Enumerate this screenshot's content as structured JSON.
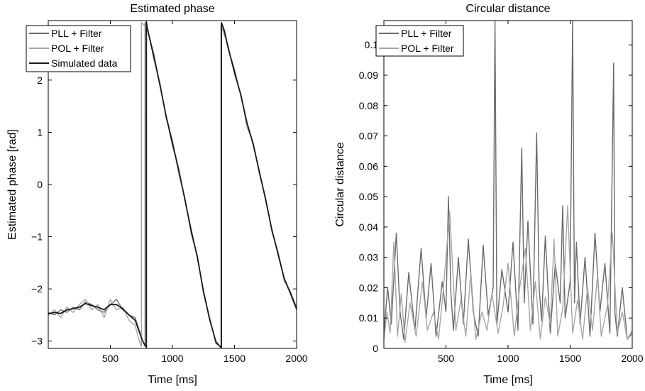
{
  "colors": {
    "pll": "#6a6a6a",
    "pol": "#a6a6a6",
    "sim": "#1a1a1a"
  },
  "chart_data": [
    {
      "type": "line",
      "title": "Estimated phase",
      "xlabel": "Time [ms]",
      "ylabel": "Estimated phase [rad]",
      "xlim": [
        0,
        2000
      ],
      "ylim": [
        -3.14,
        3.14
      ],
      "xticks": [
        500,
        1000,
        1500,
        2000
      ],
      "yticks": [
        -3,
        -2,
        -1,
        0,
        1,
        2
      ],
      "grid": false,
      "legend_position": "top-left",
      "series": [
        {
          "name": "PLL + Filter",
          "x": [
            0,
            50,
            100,
            150,
            200,
            250,
            300,
            350,
            400,
            450,
            500,
            550,
            600,
            650,
            700,
            760,
            780,
            780,
            800,
            850,
            900,
            950,
            1000,
            1050,
            1100,
            1150,
            1200,
            1250,
            1300,
            1350,
            1390,
            1395,
            1395,
            1420,
            1450,
            1500,
            1550,
            1600,
            1650,
            1700,
            1750,
            1800,
            1850,
            1900,
            1950,
            2000
          ],
          "y": [
            -2.45,
            -2.5,
            -2.4,
            -2.45,
            -2.35,
            -2.4,
            -2.25,
            -2.3,
            -2.4,
            -2.45,
            -2.3,
            -2.2,
            -2.4,
            -2.5,
            -2.55,
            -3.0,
            -3.1,
            3.1,
            2.95,
            2.5,
            1.9,
            1.3,
            0.75,
            0.3,
            -0.3,
            -0.85,
            -1.4,
            -2.05,
            -2.6,
            -3.0,
            -3.12,
            -3.12,
            3.1,
            2.95,
            2.6,
            2.2,
            1.7,
            1.2,
            0.75,
            0.25,
            -0.3,
            -0.85,
            -1.35,
            -1.8,
            -2.1,
            -2.4
          ]
        },
        {
          "name": "POL + Filter",
          "x": [
            0,
            50,
            100,
            150,
            200,
            250,
            300,
            350,
            400,
            450,
            500,
            550,
            600,
            650,
            700,
            740,
            750,
            750,
            800,
            850,
            900,
            950,
            1000,
            1050,
            1100,
            1150,
            1200,
            1250,
            1300,
            1350,
            1385,
            1390,
            1390,
            1420,
            1450,
            1500,
            1550,
            1600,
            1650,
            1700,
            1750,
            1800,
            1850,
            1900,
            1950,
            2000
          ],
          "y": [
            -2.5,
            -2.4,
            -2.55,
            -2.35,
            -2.45,
            -2.3,
            -2.2,
            -2.4,
            -2.3,
            -2.55,
            -2.2,
            -2.4,
            -2.35,
            -2.6,
            -2.7,
            -3.05,
            -3.1,
            3.1,
            3.0,
            2.4,
            1.95,
            1.25,
            0.85,
            0.2,
            -0.25,
            -0.95,
            -1.35,
            -2.1,
            -2.55,
            -3.05,
            -3.1,
            -3.1,
            3.05,
            2.85,
            2.65,
            2.1,
            1.75,
            1.1,
            0.8,
            0.2,
            -0.25,
            -0.9,
            -1.3,
            -1.85,
            -2.05,
            -2.35
          ]
        },
        {
          "name": "Simulated data",
          "x": [
            0,
            50,
            100,
            150,
            200,
            250,
            300,
            350,
            400,
            450,
            500,
            550,
            600,
            650,
            700,
            760,
            790,
            790,
            800,
            850,
            900,
            950,
            1000,
            1050,
            1100,
            1150,
            1200,
            1250,
            1300,
            1350,
            1390,
            1395,
            1395,
            1420,
            1450,
            1500,
            1550,
            1600,
            1650,
            1700,
            1750,
            1800,
            1850,
            1900,
            1950,
            2000
          ],
          "y": [
            -2.48,
            -2.45,
            -2.47,
            -2.4,
            -2.38,
            -2.35,
            -2.28,
            -2.32,
            -2.35,
            -2.4,
            -2.3,
            -2.3,
            -2.38,
            -2.5,
            -2.6,
            -3.0,
            -3.12,
            3.12,
            2.97,
            2.45,
            1.9,
            1.3,
            0.8,
            0.28,
            -0.28,
            -0.88,
            -1.38,
            -2.05,
            -2.58,
            -3.02,
            -3.12,
            -3.12,
            3.1,
            2.92,
            2.6,
            2.15,
            1.72,
            1.18,
            0.78,
            0.24,
            -0.28,
            -0.86,
            -1.32,
            -1.8,
            -2.08,
            -2.38
          ]
        }
      ]
    },
    {
      "type": "line",
      "title": "Circular distance",
      "xlabel": "Time [ms]",
      "ylabel": "Circular distance",
      "xlim": [
        0,
        2000
      ],
      "ylim": [
        0,
        0.108
      ],
      "xticks": [
        500,
        1000,
        1500,
        2000
      ],
      "yticks": [
        0,
        0.01,
        0.02,
        0.03,
        0.04,
        0.05,
        0.06,
        0.07,
        0.08,
        0.09,
        0.1
      ],
      "ytick_labels": [
        "0",
        "0.01",
        "0.02",
        "0.03",
        "0.04",
        "0.05",
        "0.06",
        "0.07",
        "0.08",
        "0.09",
        "0.1"
      ],
      "grid": false,
      "legend_position": "top-right",
      "series": [
        {
          "name": "PLL + Filter",
          "x": [
            0,
            30,
            60,
            100,
            130,
            160,
            200,
            250,
            300,
            340,
            380,
            420,
            470,
            500,
            520,
            540,
            560,
            600,
            640,
            680,
            720,
            760,
            800,
            840,
            880,
            895,
            910,
            950,
            1000,
            1040,
            1080,
            1110,
            1130,
            1160,
            1200,
            1230,
            1250,
            1270,
            1300,
            1340,
            1380,
            1420,
            1440,
            1460,
            1500,
            1520,
            1535,
            1550,
            1580,
            1620,
            1660,
            1700,
            1740,
            1780,
            1820,
            1850,
            1860,
            1880,
            1920,
            1960,
            2000
          ],
          "y": [
            0.005,
            0.02,
            0.008,
            0.038,
            0.012,
            0.003,
            0.025,
            0.006,
            0.033,
            0.01,
            0.028,
            0.004,
            0.022,
            0.012,
            0.05,
            0.018,
            0.006,
            0.03,
            0.008,
            0.036,
            0.012,
            0.004,
            0.034,
            0.011,
            0.02,
            0.108,
            0.008,
            0.026,
            0.012,
            0.035,
            0.006,
            0.066,
            0.015,
            0.042,
            0.008,
            0.071,
            0.02,
            0.009,
            0.037,
            0.005,
            0.028,
            0.015,
            0.047,
            0.01,
            0.022,
            0.108,
            0.015,
            0.035,
            0.008,
            0.03,
            0.004,
            0.038,
            0.012,
            0.028,
            0.005,
            0.094,
            0.012,
            0.004,
            0.02,
            0.003,
            0.005
          ]
        },
        {
          "name": "POL + Filter",
          "x": [
            0,
            25,
            50,
            80,
            110,
            140,
            170,
            210,
            260,
            310,
            350,
            400,
            440,
            480,
            530,
            580,
            620,
            660,
            700,
            740,
            790,
            830,
            870,
            920,
            960,
            1000,
            1050,
            1090,
            1140,
            1180,
            1220,
            1260,
            1300,
            1340,
            1370,
            1400,
            1440,
            1480,
            1520,
            1560,
            1600,
            1640,
            1680,
            1720,
            1750,
            1800,
            1840,
            1880,
            1920,
            1960,
            2000
          ],
          "y": [
            0.003,
            0.012,
            0.005,
            0.035,
            0.004,
            0.018,
            0.002,
            0.015,
            0.004,
            0.022,
            0.006,
            0.012,
            0.003,
            0.02,
            0.045,
            0.006,
            0.016,
            0.004,
            0.025,
            0.003,
            0.012,
            0.006,
            0.018,
            0.005,
            0.014,
            0.028,
            0.004,
            0.019,
            0.033,
            0.006,
            0.022,
            0.003,
            0.017,
            0.008,
            0.036,
            0.004,
            0.013,
            0.047,
            0.005,
            0.016,
            0.003,
            0.02,
            0.006,
            0.024,
            0.004,
            0.014,
            0.038,
            0.005,
            0.012,
            0.003,
            0.006
          ]
        }
      ]
    }
  ]
}
